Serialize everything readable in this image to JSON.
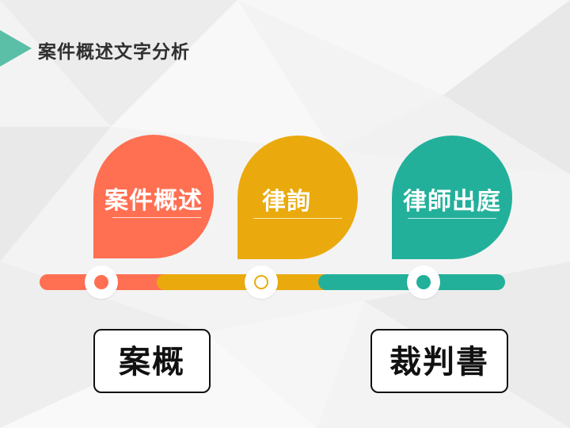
{
  "title": "案件概述文字分析",
  "steps": [
    {
      "label": "案件概述",
      "color": "#ff6f52"
    },
    {
      "label": "律詢",
      "color": "#eaaa0d"
    },
    {
      "label": "律師出庭",
      "color": "#23b09b"
    }
  ],
  "boxes": {
    "left": "案概",
    "right": "裁判書"
  },
  "colors": {
    "accent_title": "#5bbfa8",
    "orange": "#ff6f52",
    "yellow": "#eaaa0d",
    "teal": "#23b09b"
  }
}
